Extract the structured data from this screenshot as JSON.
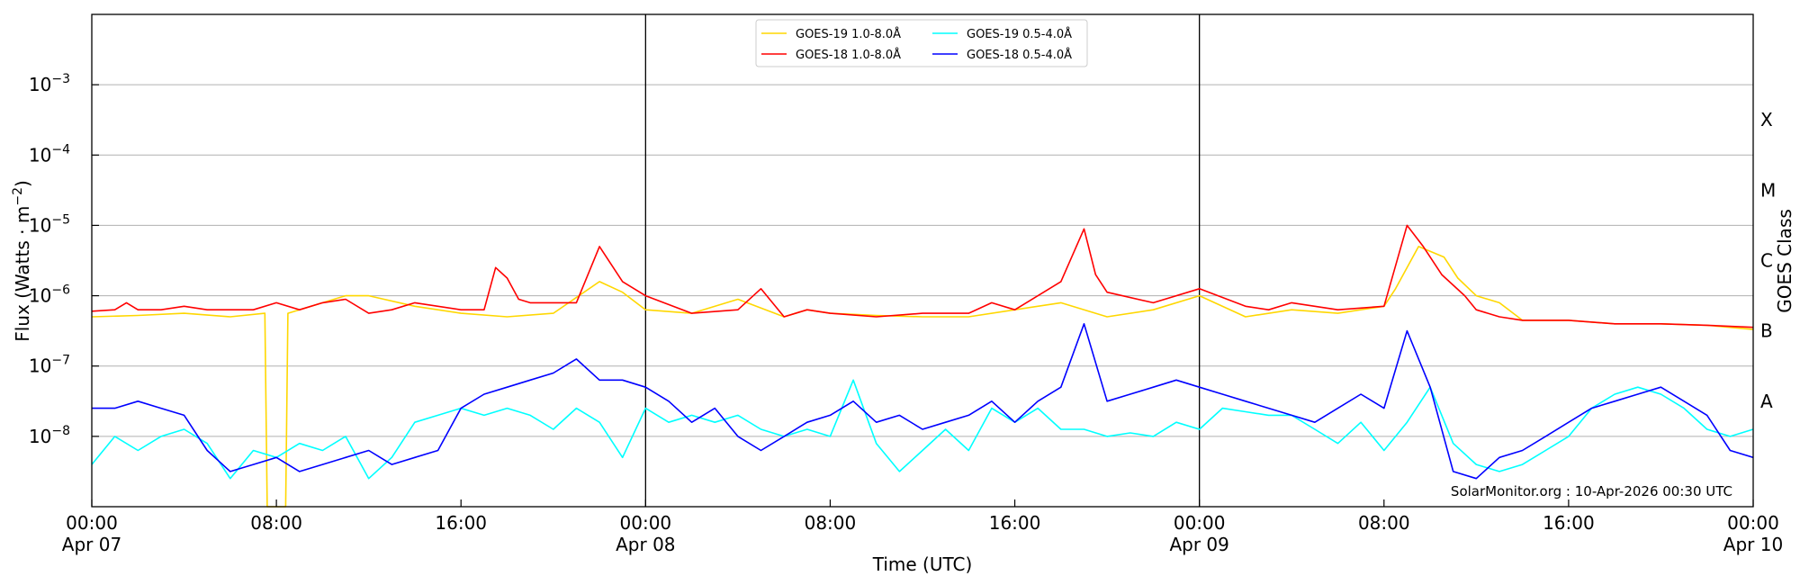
{
  "chart_data": {
    "type": "line",
    "title": "",
    "xlabel": "Time (UTC)",
    "ylabel_main": "Flux (Watts · m",
    "ylabel_sup": "−2",
    "ylabel_tail": ")",
    "right_axis_label": "GOES Class",
    "x_unit": "hours since 00:00 Apr 07 (UTC)",
    "xlim": [
      0,
      72
    ],
    "ylim_log10": [
      -9,
      -2
    ],
    "y_scale": "log",
    "grid": "horizontal at each decade",
    "day_boundaries": [
      24,
      48
    ],
    "x_ticks": [
      {
        "x": 0,
        "line1": "00:00",
        "line2": "Apr 07"
      },
      {
        "x": 8,
        "line1": "08:00",
        "line2": ""
      },
      {
        "x": 16,
        "line1": "16:00",
        "line2": ""
      },
      {
        "x": 24,
        "line1": "00:00",
        "line2": "Apr 08"
      },
      {
        "x": 32,
        "line1": "08:00",
        "line2": ""
      },
      {
        "x": 40,
        "line1": "16:00",
        "line2": ""
      },
      {
        "x": 48,
        "line1": "00:00",
        "line2": "Apr 09"
      },
      {
        "x": 56,
        "line1": "08:00",
        "line2": ""
      },
      {
        "x": 64,
        "line1": "16:00",
        "line2": ""
      },
      {
        "x": 72,
        "line1": "00:00",
        "line2": "Apr 10"
      }
    ],
    "y_ticks": [
      {
        "exp": -8,
        "label": "10",
        "sup": "−8"
      },
      {
        "exp": -7,
        "label": "10",
        "sup": "−7"
      },
      {
        "exp": -6,
        "label": "10",
        "sup": "−6"
      },
      {
        "exp": -5,
        "label": "10",
        "sup": "−5"
      },
      {
        "exp": -4,
        "label": "10",
        "sup": "−4"
      },
      {
        "exp": -3,
        "label": "10",
        "sup": "−3"
      }
    ],
    "goes_classes": [
      {
        "label": "A",
        "exp": -7.5
      },
      {
        "label": "B",
        "exp": -6.5
      },
      {
        "label": "C",
        "exp": -5.5
      },
      {
        "label": "M",
        "exp": -4.5
      },
      {
        "label": "X",
        "exp": -3.5
      }
    ],
    "legend": {
      "placement": "top-center",
      "entries": [
        {
          "text": "GOES-19 1.0-8.0Å",
          "color": "#FFD700"
        },
        {
          "text": "GOES-18 1.0-8.0Å",
          "color": "#FF0000"
        },
        {
          "text": "GOES-19 0.5-4.0Å",
          "color": "#00FFFF"
        },
        {
          "text": "GOES-18 0.5-4.0Å",
          "color": "#0000FF"
        }
      ]
    },
    "watermark": "SolarMonitor.org : 10-Apr-2026 00:30 UTC",
    "series": [
      {
        "name": "GOES-19 1.0-8.0Å",
        "color": "#FFD700",
        "points": [
          [
            0,
            -6.3
          ],
          [
            2,
            -6.28
          ],
          [
            4,
            -6.25
          ],
          [
            6,
            -6.3
          ],
          [
            7.5,
            -6.25
          ],
          [
            7.6,
            -9.2
          ],
          [
            8.4,
            -9.2
          ],
          [
            8.5,
            -6.25
          ],
          [
            10,
            -6.1
          ],
          [
            11,
            -6.0
          ],
          [
            12,
            -6.0
          ],
          [
            14,
            -6.15
          ],
          [
            16,
            -6.25
          ],
          [
            18,
            -6.3
          ],
          [
            20,
            -6.25
          ],
          [
            22,
            -5.8
          ],
          [
            23,
            -5.95
          ],
          [
            24,
            -6.2
          ],
          [
            26,
            -6.25
          ],
          [
            28,
            -6.05
          ],
          [
            30,
            -6.3
          ],
          [
            31,
            -6.2
          ],
          [
            32,
            -6.25
          ],
          [
            34,
            -6.28
          ],
          [
            36,
            -6.3
          ],
          [
            38,
            -6.3
          ],
          [
            40,
            -6.2
          ],
          [
            42,
            -6.1
          ],
          [
            44,
            -6.3
          ],
          [
            46,
            -6.2
          ],
          [
            48,
            -6.0
          ],
          [
            50,
            -6.3
          ],
          [
            52,
            -6.2
          ],
          [
            54,
            -6.25
          ],
          [
            56,
            -6.15
          ],
          [
            56.5,
            -5.9
          ],
          [
            57.5,
            -5.3
          ],
          [
            58.6,
            -5.45
          ],
          [
            59.2,
            -5.75
          ],
          [
            60,
            -6.0
          ],
          [
            61,
            -6.1
          ],
          [
            62,
            -6.35
          ],
          [
            64,
            -6.35
          ],
          [
            66,
            -6.4
          ],
          [
            68,
            -6.4
          ],
          [
            70,
            -6.42
          ],
          [
            72,
            -6.48
          ]
        ]
      },
      {
        "name": "GOES-18 1.0-8.0Å",
        "color": "#FF0000",
        "points": [
          [
            0,
            -6.22
          ],
          [
            1,
            -6.2
          ],
          [
            1.5,
            -6.1
          ],
          [
            2,
            -6.2
          ],
          [
            3,
            -6.2
          ],
          [
            4,
            -6.15
          ],
          [
            5,
            -6.2
          ],
          [
            6,
            -6.2
          ],
          [
            7,
            -6.2
          ],
          [
            8,
            -6.1
          ],
          [
            9,
            -6.2
          ],
          [
            10,
            -6.1
          ],
          [
            11,
            -6.05
          ],
          [
            12,
            -6.25
          ],
          [
            13,
            -6.2
          ],
          [
            14,
            -6.1
          ],
          [
            16,
            -6.2
          ],
          [
            17,
            -6.2
          ],
          [
            17.5,
            -5.6
          ],
          [
            18,
            -5.75
          ],
          [
            18.5,
            -6.05
          ],
          [
            19,
            -6.1
          ],
          [
            21,
            -6.1
          ],
          [
            22,
            -5.3
          ],
          [
            23,
            -5.8
          ],
          [
            24,
            -6.0
          ],
          [
            26,
            -6.25
          ],
          [
            28,
            -6.2
          ],
          [
            29,
            -5.9
          ],
          [
            30,
            -6.3
          ],
          [
            31,
            -6.2
          ],
          [
            32,
            -6.25
          ],
          [
            34,
            -6.3
          ],
          [
            36,
            -6.25
          ],
          [
            38,
            -6.25
          ],
          [
            39,
            -6.1
          ],
          [
            40,
            -6.2
          ],
          [
            42,
            -5.8
          ],
          [
            43,
            -5.05
          ],
          [
            43.5,
            -5.7
          ],
          [
            44,
            -5.95
          ],
          [
            46,
            -6.1
          ],
          [
            48,
            -5.9
          ],
          [
            50,
            -6.15
          ],
          [
            51,
            -6.2
          ],
          [
            52,
            -6.1
          ],
          [
            54,
            -6.2
          ],
          [
            56,
            -6.15
          ],
          [
            57,
            -5.0
          ],
          [
            57.7,
            -5.3
          ],
          [
            58.5,
            -5.7
          ],
          [
            59.5,
            -6.0
          ],
          [
            60,
            -6.2
          ],
          [
            61,
            -6.3
          ],
          [
            62,
            -6.35
          ],
          [
            64,
            -6.35
          ],
          [
            66,
            -6.4
          ],
          [
            68,
            -6.4
          ],
          [
            70,
            -6.42
          ],
          [
            72,
            -6.45
          ]
        ]
      },
      {
        "name": "GOES-19 0.5-4.0Å",
        "color": "#00FFFF",
        "points": [
          [
            0,
            -8.4
          ],
          [
            1,
            -8.0
          ],
          [
            2,
            -8.2
          ],
          [
            3,
            -8.0
          ],
          [
            4,
            -7.9
          ],
          [
            5,
            -8.1
          ],
          [
            6,
            -8.6
          ],
          [
            7,
            -8.2
          ],
          [
            8,
            -8.3
          ],
          [
            9,
            -8.1
          ],
          [
            10,
            -8.2
          ],
          [
            11,
            -8.0
          ],
          [
            12,
            -8.6
          ],
          [
            13,
            -8.3
          ],
          [
            14,
            -7.8
          ],
          [
            15,
            -7.7
          ],
          [
            16,
            -7.6
          ],
          [
            17,
            -7.7
          ],
          [
            18,
            -7.6
          ],
          [
            19,
            -7.7
          ],
          [
            20,
            -7.9
          ],
          [
            21,
            -7.6
          ],
          [
            22,
            -7.8
          ],
          [
            23,
            -8.3
          ],
          [
            24,
            -7.6
          ],
          [
            25,
            -7.8
          ],
          [
            26,
            -7.7
          ],
          [
            27,
            -7.8
          ],
          [
            28,
            -7.7
          ],
          [
            29,
            -7.9
          ],
          [
            30,
            -8.0
          ],
          [
            31,
            -7.9
          ],
          [
            32,
            -8.0
          ],
          [
            33,
            -7.2
          ],
          [
            34,
            -8.1
          ],
          [
            35,
            -8.5
          ],
          [
            36,
            -8.2
          ],
          [
            37,
            -7.9
          ],
          [
            38,
            -8.2
          ],
          [
            39,
            -7.6
          ],
          [
            40,
            -7.8
          ],
          [
            41,
            -7.6
          ],
          [
            42,
            -7.9
          ],
          [
            43,
            -7.9
          ],
          [
            44,
            -8.0
          ],
          [
            45,
            -7.95
          ],
          [
            46,
            -8.0
          ],
          [
            47,
            -7.8
          ],
          [
            48,
            -7.9
          ],
          [
            49,
            -7.6
          ],
          [
            50,
            -7.65
          ],
          [
            51,
            -7.7
          ],
          [
            52,
            -7.7
          ],
          [
            53,
            -7.9
          ],
          [
            54,
            -8.1
          ],
          [
            55,
            -7.8
          ],
          [
            56,
            -8.2
          ],
          [
            57,
            -7.8
          ],
          [
            58,
            -7.3
          ],
          [
            59,
            -8.1
          ],
          [
            60,
            -8.4
          ],
          [
            61,
            -8.5
          ],
          [
            62,
            -8.4
          ],
          [
            63,
            -8.2
          ],
          [
            64,
            -8.0
          ],
          [
            65,
            -7.6
          ],
          [
            66,
            -7.4
          ],
          [
            67,
            -7.3
          ],
          [
            68,
            -7.4
          ],
          [
            69,
            -7.6
          ],
          [
            70,
            -7.9
          ],
          [
            71,
            -8.0
          ],
          [
            72,
            -7.9
          ]
        ]
      },
      {
        "name": "GOES-18 0.5-4.0Å",
        "color": "#0000FF",
        "points": [
          [
            0,
            -7.6
          ],
          [
            1,
            -7.6
          ],
          [
            2,
            -7.5
          ],
          [
            3,
            -7.6
          ],
          [
            4,
            -7.7
          ],
          [
            5,
            -8.2
          ],
          [
            6,
            -8.5
          ],
          [
            7,
            -8.4
          ],
          [
            8,
            -8.3
          ],
          [
            9,
            -8.5
          ],
          [
            10,
            -8.4
          ],
          [
            11,
            -8.3
          ],
          [
            12,
            -8.2
          ],
          [
            13,
            -8.4
          ],
          [
            14,
            -8.3
          ],
          [
            15,
            -8.2
          ],
          [
            16,
            -7.6
          ],
          [
            17,
            -7.4
          ],
          [
            18,
            -7.3
          ],
          [
            19,
            -7.2
          ],
          [
            20,
            -7.1
          ],
          [
            21,
            -6.9
          ],
          [
            22,
            -7.2
          ],
          [
            23,
            -7.2
          ],
          [
            24,
            -7.3
          ],
          [
            25,
            -7.5
          ],
          [
            26,
            -7.8
          ],
          [
            27,
            -7.6
          ],
          [
            28,
            -8.0
          ],
          [
            29,
            -8.2
          ],
          [
            30,
            -8.0
          ],
          [
            31,
            -7.8
          ],
          [
            32,
            -7.7
          ],
          [
            33,
            -7.5
          ],
          [
            34,
            -7.8
          ],
          [
            35,
            -7.7
          ],
          [
            36,
            -7.9
          ],
          [
            37,
            -7.8
          ],
          [
            38,
            -7.7
          ],
          [
            39,
            -7.5
          ],
          [
            40,
            -7.8
          ],
          [
            41,
            -7.5
          ],
          [
            42,
            -7.3
          ],
          [
            43,
            -6.4
          ],
          [
            44,
            -7.5
          ],
          [
            45,
            -7.4
          ],
          [
            46,
            -7.3
          ],
          [
            47,
            -7.2
          ],
          [
            48,
            -7.3
          ],
          [
            49,
            -7.4
          ],
          [
            50,
            -7.5
          ],
          [
            51,
            -7.6
          ],
          [
            52,
            -7.7
          ],
          [
            53,
            -7.8
          ],
          [
            54,
            -7.6
          ],
          [
            55,
            -7.4
          ],
          [
            56,
            -7.6
          ],
          [
            57,
            -6.5
          ],
          [
            58,
            -7.3
          ],
          [
            59,
            -8.5
          ],
          [
            60,
            -8.6
          ],
          [
            61,
            -8.3
          ],
          [
            62,
            -8.2
          ],
          [
            63,
            -8.0
          ],
          [
            64,
            -7.8
          ],
          [
            65,
            -7.6
          ],
          [
            66,
            -7.5
          ],
          [
            67,
            -7.4
          ],
          [
            68,
            -7.3
          ],
          [
            69,
            -7.5
          ],
          [
            70,
            -7.7
          ],
          [
            71,
            -8.2
          ],
          [
            72,
            -8.3
          ]
        ]
      }
    ]
  }
}
